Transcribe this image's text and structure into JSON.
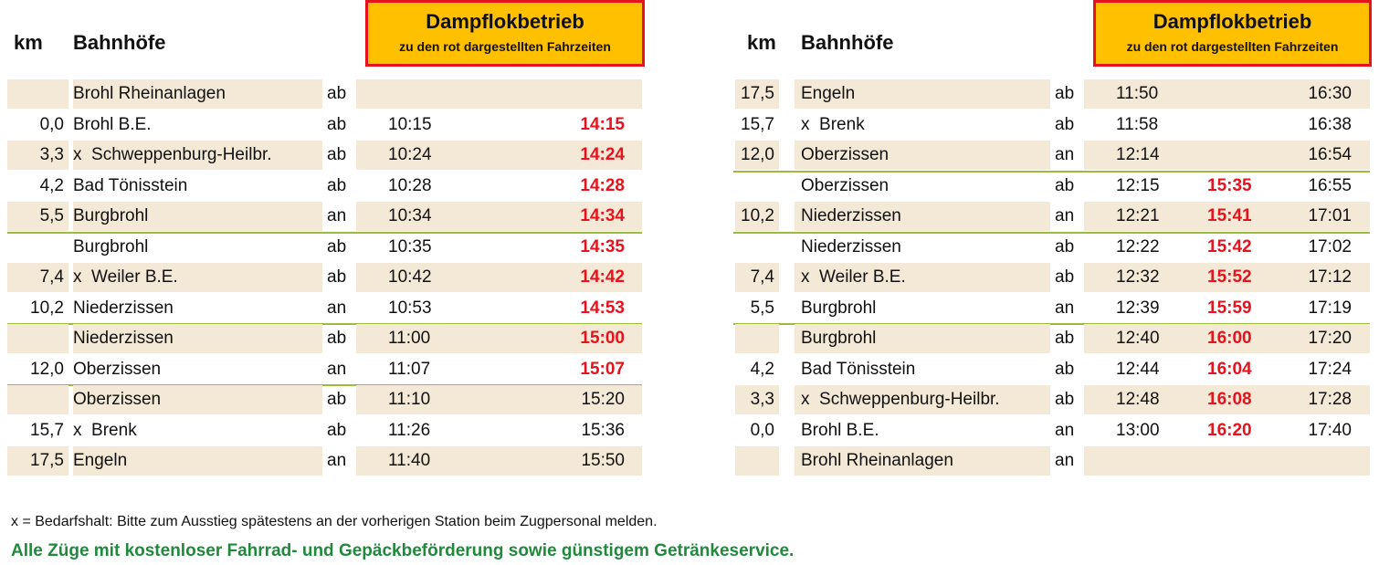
{
  "tables": [
    {
      "header": {
        "km": "km",
        "station": "Bahnhöfe",
        "box_title": "Dampflokbetrieb",
        "box_subtitle": "zu den rot dargestellten Fahrzeiten"
      },
      "rows": [
        {
          "km": null,
          "station": "Brohl Rheinanlagen",
          "dir": "ab",
          "times": [
            null,
            null
          ],
          "red": false,
          "separator": false
        },
        {
          "km": "0,0",
          "station": "Brohl B.E.",
          "dir": "ab",
          "times": [
            "10:15",
            "14:15"
          ],
          "red": true,
          "separator": false
        },
        {
          "km": "3,3",
          "station": "x  Schweppenburg-Heilbr.",
          "dir": "ab",
          "times": [
            "10:24",
            "14:24"
          ],
          "red": true,
          "separator": false
        },
        {
          "km": "4,2",
          "station": "Bad Tönisstein",
          "dir": "ab",
          "times": [
            "10:28",
            "14:28"
          ],
          "red": true,
          "separator": false
        },
        {
          "km": "5,5",
          "station": "Burgbrohl",
          "dir": "an",
          "times": [
            "10:34",
            "14:34"
          ],
          "red": true,
          "separator": true
        },
        {
          "km": null,
          "station": "Burgbrohl",
          "dir": "ab",
          "times": [
            "10:35",
            "14:35"
          ],
          "red": true,
          "separator": false
        },
        {
          "km": "7,4",
          "station": "x  Weiler B.E.",
          "dir": "ab",
          "times": [
            "10:42",
            "14:42"
          ],
          "red": true,
          "separator": false
        },
        {
          "km": "10,2",
          "station": "Niederzissen",
          "dir": "an",
          "times": [
            "10:53",
            "14:53"
          ],
          "red": true,
          "separator": true
        },
        {
          "km": null,
          "station": "Niederzissen",
          "dir": "ab",
          "times": [
            "11:00",
            "15:00"
          ],
          "red": true,
          "separator": false
        },
        {
          "km": "12,0",
          "station": "Oberzissen",
          "dir": "an",
          "times": [
            "11:07",
            "15:07"
          ],
          "red": true,
          "separator": true
        },
        {
          "km": null,
          "station": "Oberzissen",
          "dir": "ab",
          "times": [
            "11:10",
            "15:20"
          ],
          "red": false,
          "separator": false
        },
        {
          "km": "15,7",
          "station": "x  Brenk",
          "dir": "ab",
          "times": [
            "11:26",
            "15:36"
          ],
          "red": false,
          "separator": false
        },
        {
          "km": "17,5",
          "station": "Engeln",
          "dir": "an",
          "times": [
            "11:40",
            "15:50"
          ],
          "red": false,
          "separator": false
        }
      ]
    },
    {
      "header": {
        "km": "km",
        "station": "Bahnhöfe",
        "box_title": "Dampflokbetrieb",
        "box_subtitle": "zu den rot dargestellten Fahrzeiten"
      },
      "rows": [
        {
          "km": "17,5",
          "station": "Engeln",
          "dir": "ab",
          "times": [
            "11:50",
            null,
            "16:30"
          ],
          "red": true,
          "separator": false
        },
        {
          "km": "15,7",
          "station": "x  Brenk",
          "dir": "ab",
          "times": [
            "11:58",
            null,
            "16:38"
          ],
          "red": true,
          "separator": false
        },
        {
          "km": "12,0",
          "station": "Oberzissen",
          "dir": "an",
          "times": [
            "12:14",
            null,
            "16:54"
          ],
          "red": true,
          "separator": true
        },
        {
          "km": null,
          "station": "Oberzissen",
          "dir": "ab",
          "times": [
            "12:15",
            "15:35",
            "16:55"
          ],
          "red": true,
          "separator": false
        },
        {
          "km": "10,2",
          "station": "Niederzissen",
          "dir": "an",
          "times": [
            "12:21",
            "15:41",
            "17:01"
          ],
          "red": true,
          "separator": true
        },
        {
          "km": null,
          "station": "Niederzissen",
          "dir": "ab",
          "times": [
            "12:22",
            "15:42",
            "17:02"
          ],
          "red": true,
          "separator": false
        },
        {
          "km": "7,4",
          "station": "x  Weiler B.E.",
          "dir": "ab",
          "times": [
            "12:32",
            "15:52",
            "17:12"
          ],
          "red": true,
          "separator": false
        },
        {
          "km": "5,5",
          "station": "Burgbrohl",
          "dir": "an",
          "times": [
            "12:39",
            "15:59",
            "17:19"
          ],
          "red": true,
          "separator": true
        },
        {
          "km": null,
          "station": "Burgbrohl",
          "dir": "ab",
          "times": [
            "12:40",
            "16:00",
            "17:20"
          ],
          "red": true,
          "separator": false
        },
        {
          "km": "4,2",
          "station": "Bad Tönisstein",
          "dir": "ab",
          "times": [
            "12:44",
            "16:04",
            "17:24"
          ],
          "red": true,
          "separator": false
        },
        {
          "km": "3,3",
          "station": "x  Schweppenburg-Heilbr.",
          "dir": "ab",
          "times": [
            "12:48",
            "16:08",
            "17:28"
          ],
          "red": true,
          "separator": false
        },
        {
          "km": "0,0",
          "station": "Brohl B.E.",
          "dir": "an",
          "times": [
            "13:00",
            "16:20",
            "17:40"
          ],
          "red": true,
          "separator": false
        },
        {
          "km": null,
          "station": "Brohl Rheinanlagen",
          "dir": "an",
          "times": [
            null,
            null,
            null
          ],
          "red": true,
          "separator": false
        }
      ]
    }
  ],
  "footer": {
    "note": "x = Bedarfshalt: Bitte zum Ausstieg spätestens an der vorherigen Station beim Zugpersonal melden.",
    "service": "Alle Züge mit kostenloser Fahrrad- und Gepäckbeförderung sowie günstigem Getränkeservice."
  }
}
